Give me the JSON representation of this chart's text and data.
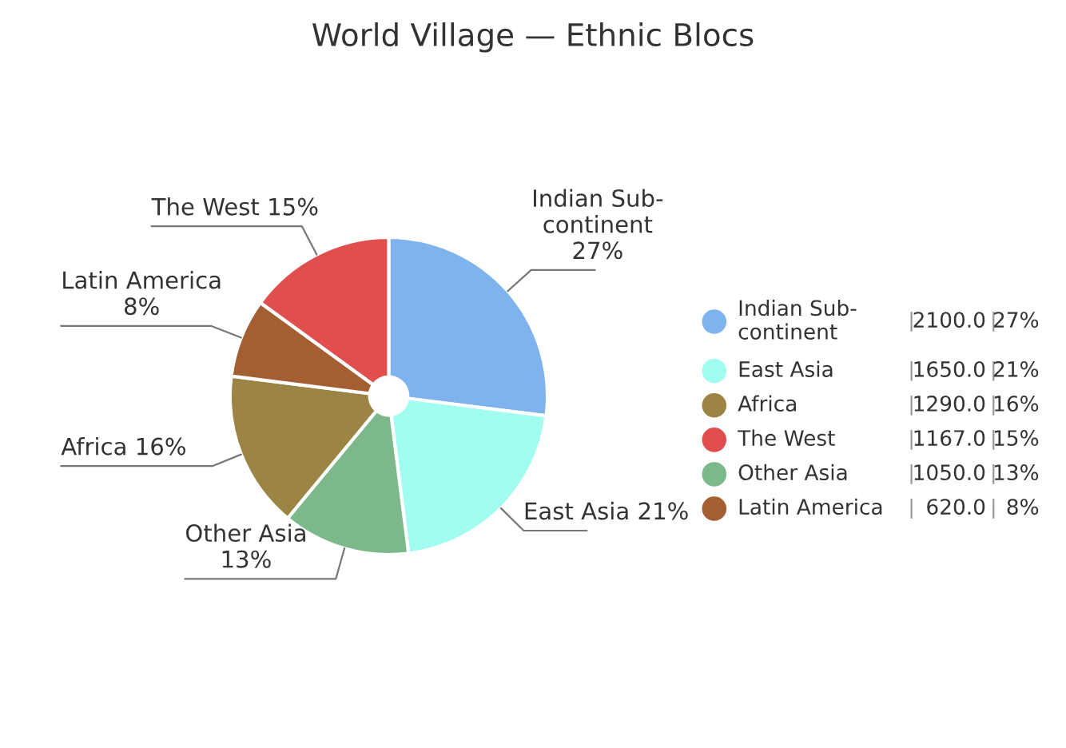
{
  "chart_data": {
    "type": "pie",
    "title": "World Village — Ethnic Blocs",
    "categories": [
      "Indian Sub-\ncontinent",
      "East Asia",
      "Other Asia",
      "Africa",
      "Latin America",
      "The West"
    ],
    "values": [
      27,
      21,
      13,
      16,
      8,
      15
    ],
    "value_labels": [
      "27%",
      "21%",
      "13%",
      "16%",
      "8%",
      "15%"
    ],
    "colors": [
      "#7eb3ee",
      "#a0fdf0",
      "#7cb88a",
      "#9b8444",
      "#a35f32",
      "#e04e4e"
    ],
    "annotations": [
      "2100.0",
      "1650.0",
      "1290.0",
      "1167.0",
      "1050.0",
      "620.0"
    ],
    "legend": "right"
  }
}
